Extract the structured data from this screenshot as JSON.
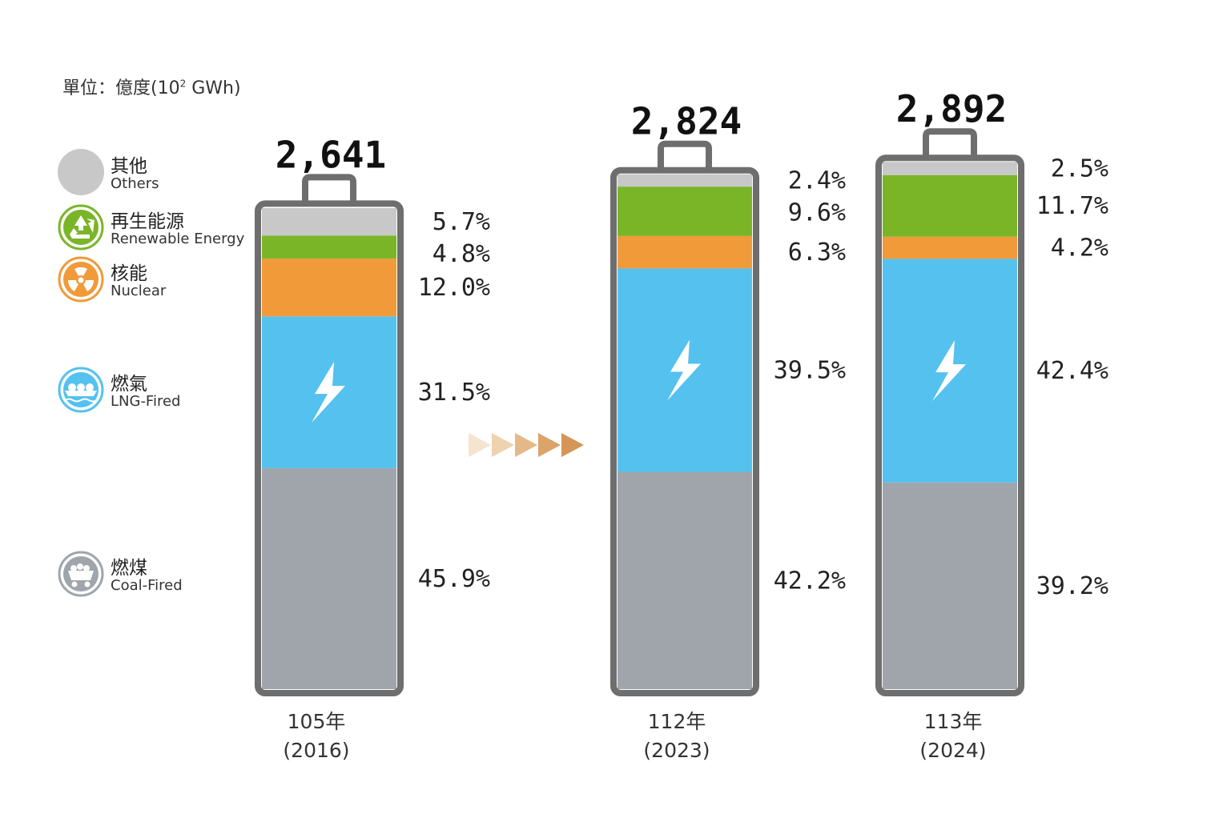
{
  "chart_data": {
    "type": "bar",
    "stacked": true,
    "unit": "單位：億度(10",
    "unit_sup": "2",
    "unit_tail": " GWh)",
    "legend": [
      {
        "key": "others",
        "zh": "其他",
        "en": "Others",
        "color": "#c8c8c8"
      },
      {
        "key": "renewable",
        "zh": "再生能源",
        "en": "Renewable Energy",
        "color": "#7ab528"
      },
      {
        "key": "nuclear",
        "zh": "核能",
        "en": "Nuclear",
        "color": "#f09a3a"
      },
      {
        "key": "lng",
        "zh": "燃氣",
        "en": "LNG-Fired",
        "color": "#54c1ef"
      },
      {
        "key": "coal",
        "zh": "燃煤",
        "en": "Coal-Fired",
        "color": "#9fa5ab"
      }
    ],
    "series_order_bottom_up": [
      "coal",
      "lng",
      "nuclear",
      "renewable",
      "others"
    ],
    "bars": [
      {
        "year_label": "105年",
        "year_ad": "(2016)",
        "total": 2641,
        "total_label": "2,641",
        "shares": {
          "coal": 45.9,
          "lng": 31.5,
          "nuclear": 12.0,
          "renewable": 4.8,
          "others": 5.7
        },
        "labels": {
          "coal": "45.9%",
          "lng": "31.5%",
          "nuclear": "12.0%",
          "renewable": "4.8%",
          "others": "5.7%"
        }
      },
      {
        "year_label": "112年",
        "year_ad": "(2023)",
        "total": 2824,
        "total_label": "2,824",
        "shares": {
          "coal": 42.2,
          "lng": 39.5,
          "nuclear": 6.3,
          "renewable": 9.6,
          "others": 2.4
        },
        "labels": {
          "coal": "42.2%",
          "lng": "39.5%",
          "nuclear": "6.3%",
          "renewable": "9.6%",
          "others": "2.4%"
        }
      },
      {
        "year_label": "113年",
        "year_ad": "(2024)",
        "total": 2892,
        "total_label": "2,892",
        "shares": {
          "coal": 39.2,
          "lng": 42.4,
          "nuclear": 4.2,
          "renewable": 11.7,
          "others": 2.5
        },
        "labels": {
          "coal": "39.2%",
          "lng": "42.4%",
          "nuclear": "4.2%",
          "renewable": "11.7%",
          "others": "2.5%"
        }
      }
    ],
    "colors": {
      "frame": "#6e6e6e",
      "bolt": "#ffffff",
      "arrows": [
        "#f5e4d0",
        "#efd2b0",
        "#e5b889",
        "#dca36b",
        "#d49556"
      ]
    }
  }
}
